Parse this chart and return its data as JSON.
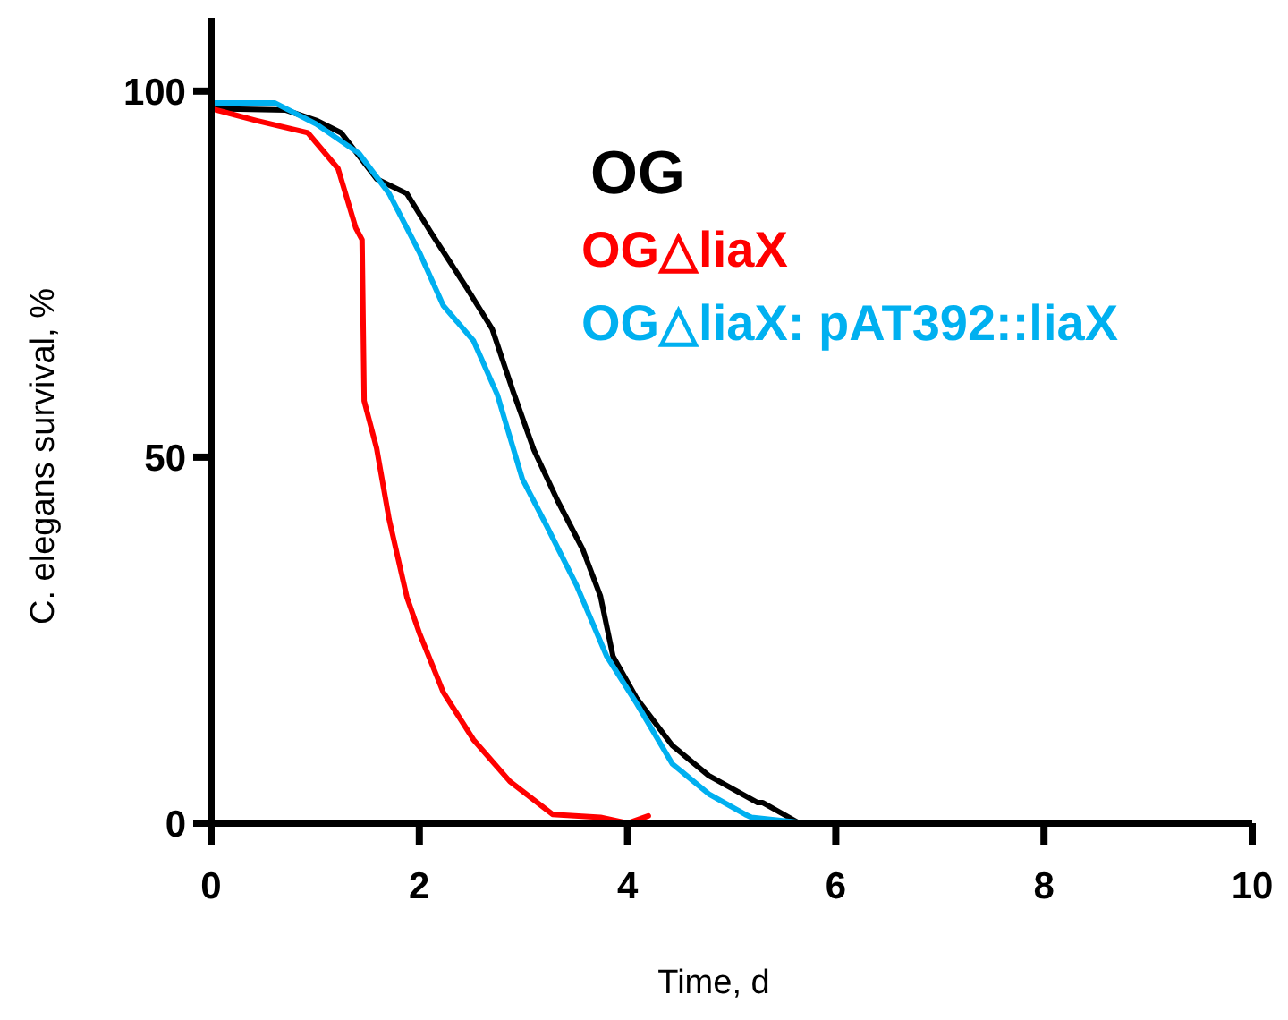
{
  "chart_data": {
    "type": "line",
    "xlabel": "Time, d",
    "ylabel": "C. elegans survival, %",
    "xlim": [
      0,
      10
    ],
    "ylim": [
      0,
      110
    ],
    "xticks": [
      0,
      2,
      4,
      6,
      8,
      10
    ],
    "yticks": [
      0,
      50,
      100
    ],
    "grid": false,
    "legend": "top right",
    "marker": "none",
    "line_style": "solid",
    "series": [
      {
        "name": "OG",
        "color": "#000000",
        "x": [
          0,
          0.72,
          1.01,
          1.25,
          1.59,
          1.88,
          2.12,
          2.46,
          2.7,
          2.9,
          3.1,
          3.33,
          3.57,
          3.74,
          3.86,
          4.09,
          4.43,
          4.78,
          5.25,
          5.3,
          5.65
        ],
        "values": [
          97.6,
          97.4,
          96,
          94.3,
          88,
          86,
          80.5,
          73,
          67.5,
          59,
          51,
          44,
          37.4,
          31,
          22.8,
          17,
          10.6,
          6.5,
          2.8,
          2.8,
          0
        ]
      },
      {
        "name": "OG△liaX",
        "color": "#ff0000",
        "x": [
          0,
          0.43,
          0.93,
          1.22,
          1.39,
          1.45,
          1.47,
          1.59,
          1.71,
          1.88,
          2,
          2.23,
          2.52,
          2.87,
          3.28,
          3.74,
          4,
          4.2
        ],
        "values": [
          97.6,
          96,
          94.3,
          89.4,
          81.3,
          79.7,
          57.7,
          51.2,
          41.5,
          30.9,
          26,
          17.9,
          11.4,
          5.7,
          1.2,
          0.8,
          0,
          1
        ]
      },
      {
        "name": "OG△liaX: pAT392::liaX",
        "color": "#00b0f0",
        "x": [
          0,
          0.61,
          1.01,
          1.42,
          1.71,
          2,
          2.23,
          2.52,
          2.75,
          2.99,
          3.22,
          3.51,
          3.8,
          4.09,
          4.43,
          4.78,
          5.13,
          5.19,
          5.71
        ],
        "values": [
          98.4,
          98.4,
          95.5,
          91.5,
          86,
          78,
          70.7,
          65.9,
          58.5,
          47,
          40.7,
          32.5,
          22.8,
          16.3,
          8.1,
          4,
          1.2,
          0.8,
          0
        ]
      }
    ]
  }
}
